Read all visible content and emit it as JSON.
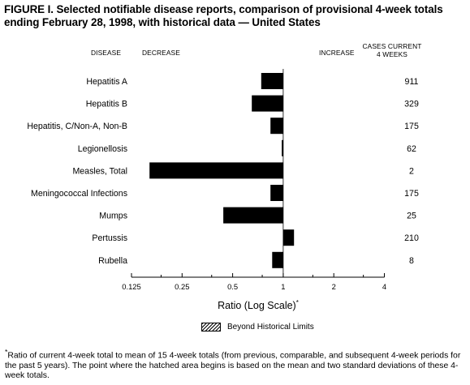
{
  "figure": {
    "title": "FIGURE I. Selected notifiable disease reports, comparison of provisional 4-week totals\nending February 28, 1998, with historical data — United States",
    "headers": {
      "disease": "DISEASE",
      "decrease": "DECREASE",
      "increase": "INCREASE",
      "cases": "CASES CURRENT\n4 WEEKS"
    },
    "legend_label": "Beyond Historical Limits",
    "footnote_marker": "*",
    "footnote": "Ratio of current 4-week total to mean of 15 4-week totals (from previous, comparable, and subsequent 4-week periods for the past 5 years). The point where the hatched area begins is based on the mean and two standard deviations of these 4-week totals."
  },
  "chart_data": {
    "type": "bar",
    "orientation": "horizontal",
    "xscale": "log2",
    "xlim": [
      0.125,
      4
    ],
    "xticks": [
      "0.125",
      "0.25",
      "0.5",
      "1",
      "2",
      "4"
    ],
    "xlabel": "Ratio (Log Scale)",
    "xlabel_marker": "*",
    "reference_line": 1,
    "categories": [
      "Hepatitis A",
      "Hepatitis B",
      "Hepatitis, C/Non-A, Non-B",
      "Legionellosis",
      "Measles, Total",
      "Meningococcal Infections",
      "Mumps",
      "Pertussis",
      "Rubella"
    ],
    "values": [
      0.74,
      0.65,
      0.84,
      0.98,
      0.16,
      0.84,
      0.44,
      1.16,
      0.86
    ],
    "cases_current_4_weeks": [
      "911",
      "329",
      "175",
      "62",
      "2",
      "175",
      "25",
      "210",
      "8"
    ],
    "beyond_historical_limits": [
      false,
      false,
      false,
      false,
      false,
      false,
      false,
      false,
      false
    ],
    "colors": {
      "bar": "#000000",
      "text": "#000000"
    }
  }
}
